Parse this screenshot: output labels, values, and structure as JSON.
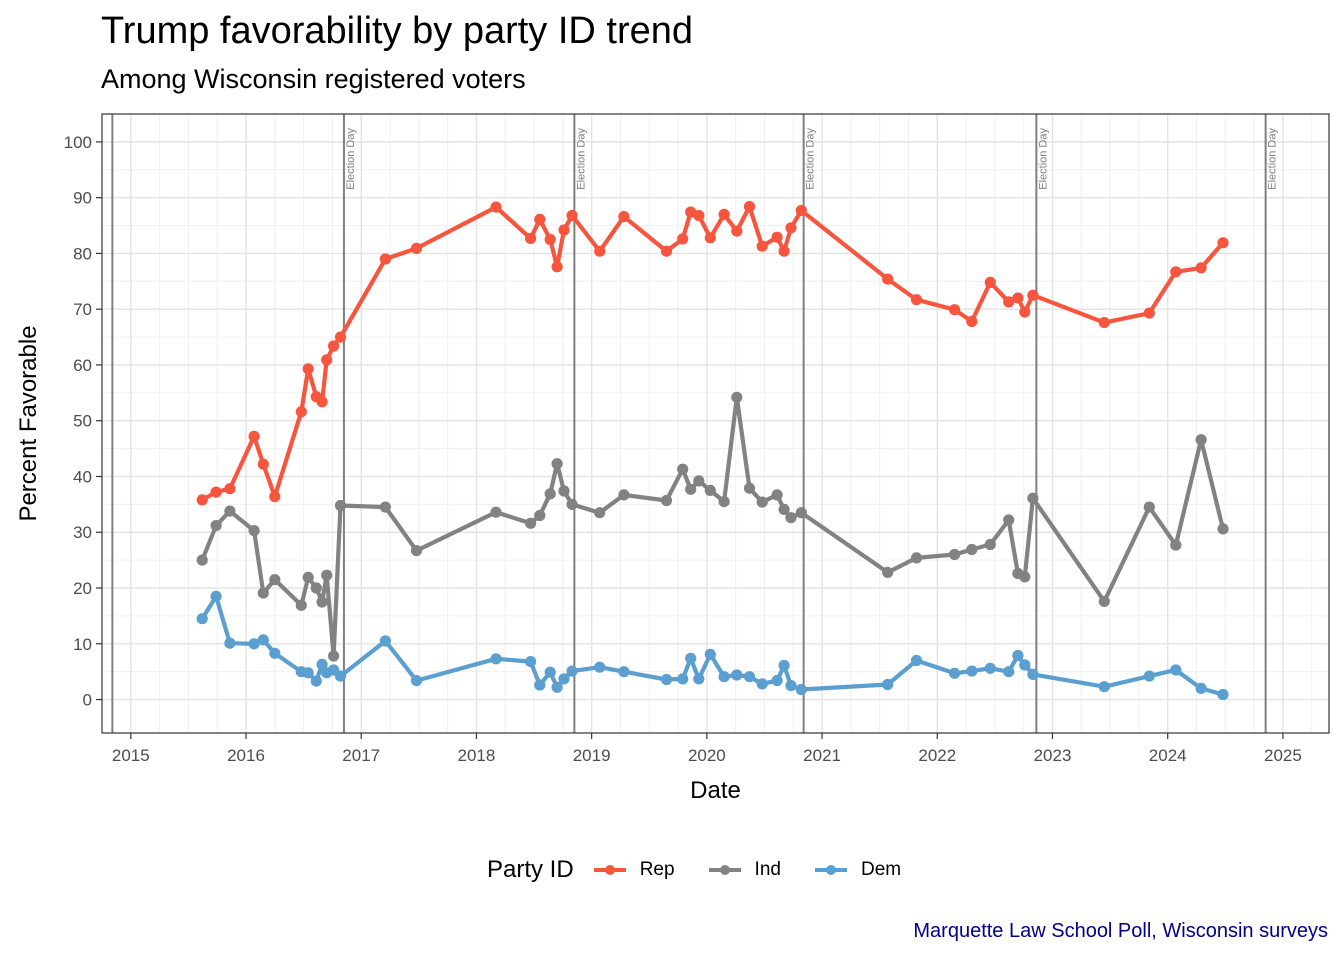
{
  "title": "Trump favorability by party ID trend",
  "subtitle": "Among Wisconsin registered voters",
  "caption": "Marquette Law School Poll, Wisconsin surveys",
  "chart_data": {
    "type": "line",
    "xlabel": "Date",
    "ylabel": "Percent Favorable",
    "xlim": [
      2014.75,
      2025.4
    ],
    "ylim": [
      -6,
      105
    ],
    "x_ticks": [
      2015,
      2016,
      2017,
      2018,
      2019,
      2020,
      2021,
      2022,
      2023,
      2024,
      2025
    ],
    "y_ticks": [
      0,
      10,
      20,
      30,
      40,
      50,
      60,
      70,
      80,
      90,
      100
    ],
    "grid": true,
    "legend_title": "Party ID",
    "legend_position": "bottom",
    "vlines": [
      {
        "x": 2014.84,
        "label": ""
      },
      {
        "x": 2016.85,
        "label": "Election Day"
      },
      {
        "x": 2018.85,
        "label": "Election Day"
      },
      {
        "x": 2020.84,
        "label": "Election Day"
      },
      {
        "x": 2022.86,
        "label": "Election Day"
      },
      {
        "x": 2024.85,
        "label": "Election Day"
      }
    ],
    "series": [
      {
        "name": "Rep",
        "color": "#f8553e",
        "x": [
          2015.62,
          2015.74,
          2015.86,
          2016.07,
          2016.15,
          2016.25,
          2016.48,
          2016.54,
          2016.61,
          2016.66,
          2016.7,
          2016.76,
          2016.82,
          2017.21,
          2017.48,
          2018.17,
          2018.47,
          2018.55,
          2018.64,
          2018.7,
          2018.76,
          2018.83,
          2019.07,
          2019.28,
          2019.65,
          2019.79,
          2019.86,
          2019.93,
          2020.03,
          2020.15,
          2020.26,
          2020.37,
          2020.48,
          2020.61,
          2020.67,
          2020.73,
          2020.82,
          2021.57,
          2021.82,
          2022.15,
          2022.3,
          2022.46,
          2022.62,
          2022.7,
          2022.76,
          2022.83,
          2023.45,
          2023.84,
          2024.07,
          2024.29,
          2024.48
        ],
        "values": [
          35.8,
          37.2,
          37.8,
          47.2,
          42.2,
          36.4,
          51.6,
          59.3,
          54.3,
          53.4,
          60.9,
          63.4,
          65.0,
          79.0,
          80.9,
          88.3,
          82.7,
          86.1,
          82.5,
          77.6,
          84.2,
          86.8,
          80.4,
          86.6,
          80.4,
          82.6,
          87.4,
          86.8,
          82.8,
          87.0,
          84.0,
          88.4,
          81.3,
          82.9,
          80.4,
          84.6,
          87.7,
          75.4,
          71.7,
          69.9,
          67.8,
          74.8,
          71.3,
          72.0,
          69.5,
          72.5,
          67.6,
          69.3,
          76.7,
          77.4,
          81.9
        ]
      },
      {
        "name": "Ind",
        "color": "#828282",
        "x": [
          2015.62,
          2015.74,
          2015.86,
          2016.07,
          2016.15,
          2016.25,
          2016.48,
          2016.54,
          2016.61,
          2016.66,
          2016.7,
          2016.76,
          2016.82,
          2017.21,
          2017.48,
          2018.17,
          2018.47,
          2018.55,
          2018.64,
          2018.7,
          2018.76,
          2018.83,
          2019.07,
          2019.28,
          2019.65,
          2019.79,
          2019.86,
          2019.93,
          2020.03,
          2020.15,
          2020.26,
          2020.37,
          2020.48,
          2020.61,
          2020.67,
          2020.73,
          2020.82,
          2021.57,
          2021.82,
          2022.15,
          2022.3,
          2022.46,
          2022.62,
          2022.7,
          2022.76,
          2022.83,
          2023.45,
          2023.84,
          2024.07,
          2024.29,
          2024.48
        ],
        "values": [
          25.0,
          31.2,
          33.8,
          30.3,
          19.1,
          21.5,
          16.9,
          21.9,
          20.0,
          17.5,
          22.3,
          7.8,
          34.8,
          34.5,
          26.7,
          33.6,
          31.6,
          33.0,
          36.9,
          42.3,
          37.4,
          35.0,
          33.5,
          36.7,
          35.7,
          41.3,
          37.7,
          39.2,
          37.5,
          35.5,
          54.2,
          37.9,
          35.4,
          36.7,
          34.1,
          32.6,
          33.5,
          22.8,
          25.4,
          26.0,
          26.9,
          27.8,
          32.2,
          22.6,
          22.0,
          36.1,
          17.6,
          34.5,
          27.7,
          46.6,
          30.6
        ]
      },
      {
        "name": "Dem",
        "color": "#5a9fd0",
        "x": [
          2015.62,
          2015.74,
          2015.86,
          2016.07,
          2016.15,
          2016.25,
          2016.48,
          2016.54,
          2016.61,
          2016.66,
          2016.7,
          2016.76,
          2016.82,
          2017.21,
          2017.48,
          2018.17,
          2018.47,
          2018.55,
          2018.64,
          2018.7,
          2018.76,
          2018.83,
          2019.07,
          2019.28,
          2019.65,
          2019.79,
          2019.86,
          2019.93,
          2020.03,
          2020.15,
          2020.26,
          2020.37,
          2020.48,
          2020.61,
          2020.67,
          2020.73,
          2020.82,
          2021.57,
          2021.82,
          2022.15,
          2022.3,
          2022.46,
          2022.62,
          2022.7,
          2022.76,
          2022.83,
          2023.45,
          2023.84,
          2024.07,
          2024.29,
          2024.48
        ],
        "values": [
          14.5,
          18.5,
          10.1,
          10.0,
          10.7,
          8.3,
          5.0,
          4.8,
          3.3,
          6.3,
          4.8,
          5.3,
          4.2,
          10.5,
          3.4,
          7.3,
          6.8,
          2.6,
          4.9,
          2.2,
          3.7,
          5.1,
          5.8,
          5.0,
          3.6,
          3.7,
          7.4,
          3.7,
          8.1,
          4.1,
          4.4,
          4.1,
          2.8,
          3.4,
          6.1,
          2.5,
          1.8,
          2.7,
          7.0,
          4.7,
          5.1,
          5.6,
          5.0,
          7.9,
          6.2,
          4.5,
          2.3,
          4.2,
          5.3,
          2.0,
          0.9
        ]
      }
    ]
  }
}
